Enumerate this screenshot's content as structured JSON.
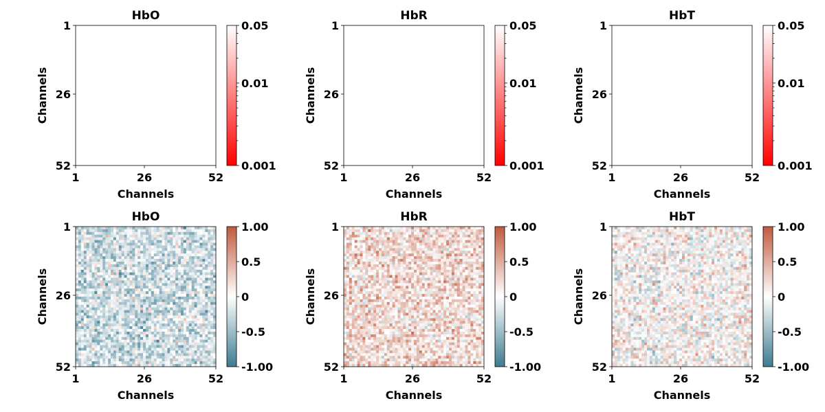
{
  "chart_data": [
    {
      "type": "heatmap",
      "title": "HbO",
      "xlabel": "Channels",
      "ylabel": "Channels",
      "x_ticks": [
        "1",
        "26",
        "52"
      ],
      "y_ticks": [
        "1",
        "26",
        "52"
      ],
      "n_channels": 52,
      "matrix": "empty",
      "colorbar": {
        "scale": "log",
        "range": [
          0.001,
          0.05
        ],
        "ticks": [
          "0.05",
          "0.01",
          "0.001"
        ],
        "colors": [
          "#ff0000",
          "#ffffff"
        ]
      }
    },
    {
      "type": "heatmap",
      "title": "HbR",
      "xlabel": "Channels",
      "ylabel": "Channels",
      "x_ticks": [
        "1",
        "26",
        "52"
      ],
      "y_ticks": [
        "1",
        "26",
        "52"
      ],
      "n_channels": 52,
      "matrix": "empty",
      "colorbar": {
        "scale": "log",
        "range": [
          0.001,
          0.05
        ],
        "ticks": [
          "0.05",
          "0.01",
          "0.001"
        ],
        "colors": [
          "#ff0000",
          "#ffffff"
        ]
      }
    },
    {
      "type": "heatmap",
      "title": "HbT",
      "xlabel": "Channels",
      "ylabel": "Channels",
      "x_ticks": [
        "1",
        "26",
        "52"
      ],
      "y_ticks": [
        "1",
        "26",
        "52"
      ],
      "n_channels": 52,
      "matrix": "empty",
      "colorbar": {
        "scale": "log",
        "range": [
          0.001,
          0.05
        ],
        "ticks": [
          "0.05",
          "0.01",
          "0.001"
        ],
        "colors": [
          "#ff0000",
          "#ffffff"
        ]
      }
    },
    {
      "type": "heatmap",
      "title": "HbO",
      "xlabel": "Channels",
      "ylabel": "Channels",
      "x_ticks": [
        "1",
        "26",
        "52"
      ],
      "y_ticks": [
        "1",
        "26",
        "52"
      ],
      "n_channels": 52,
      "matrix": "correlation",
      "value_bias": -0.25,
      "value_spread": 0.45,
      "seed": 11,
      "colorbar": {
        "scale": "linear",
        "range": [
          -1,
          1
        ],
        "ticks": [
          "1.00",
          "0.5",
          "0",
          "-0.5",
          "-1.00"
        ],
        "colors": [
          "#3d7b90",
          "#ffffff",
          "#c05a3e"
        ]
      }
    },
    {
      "type": "heatmap",
      "title": "HbR",
      "xlabel": "Channels",
      "ylabel": "Channels",
      "x_ticks": [
        "1",
        "26",
        "52"
      ],
      "y_ticks": [
        "1",
        "26",
        "52"
      ],
      "n_channels": 52,
      "matrix": "correlation",
      "value_bias": 0.22,
      "value_spread": 0.45,
      "seed": 23,
      "colorbar": {
        "scale": "linear",
        "range": [
          -1,
          1
        ],
        "ticks": [
          "1.00",
          "0.5",
          "0",
          "-0.5",
          "-1.00"
        ],
        "colors": [
          "#3d7b90",
          "#ffffff",
          "#c05a3e"
        ]
      }
    },
    {
      "type": "heatmap",
      "title": "HbT",
      "xlabel": "Channels",
      "ylabel": "Channels",
      "x_ticks": [
        "1",
        "26",
        "52"
      ],
      "y_ticks": [
        "1",
        "26",
        "52"
      ],
      "n_channels": 52,
      "matrix": "correlation",
      "value_bias": 0.03,
      "value_spread": 0.45,
      "seed": 37,
      "colorbar": {
        "scale": "linear",
        "range": [
          -1,
          1
        ],
        "ticks": [
          "1.00",
          "0.5",
          "0",
          "-0.5",
          "-1.00"
        ],
        "colors": [
          "#3d7b90",
          "#ffffff",
          "#c05a3e"
        ]
      }
    }
  ]
}
